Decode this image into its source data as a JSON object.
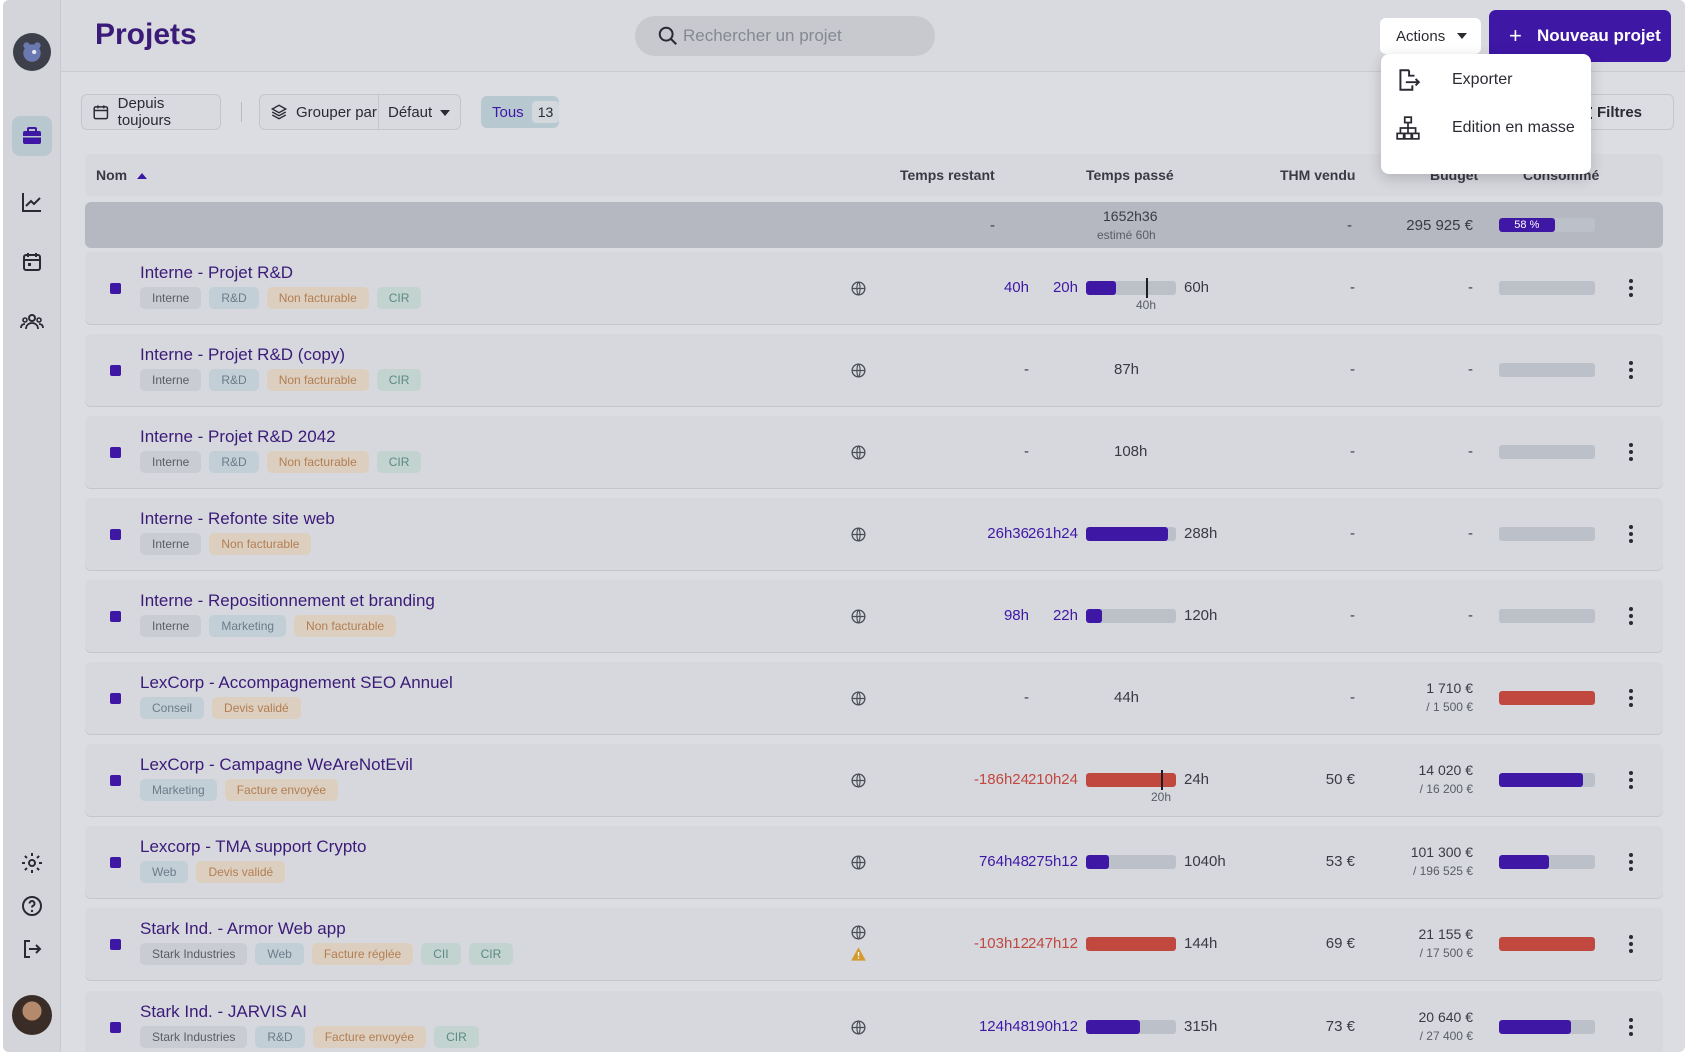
{
  "header": {
    "title": "Projets",
    "search_placeholder": "Rechercher un projet",
    "actions_label": "Actions",
    "new_project_label": "Nouveau projet"
  },
  "actions_menu": {
    "items": [
      {
        "label": "Exporter",
        "icon": "export-icon"
      },
      {
        "label": "Edition en masse",
        "icon": "hierarchy-icon"
      }
    ]
  },
  "toolbar": {
    "period_label": "Depuis toujours",
    "group_label": "Grouper par",
    "group_value": "Défaut",
    "tous_label": "Tous",
    "tous_count": "13",
    "filters_label": "Filtres"
  },
  "table": {
    "columns": {
      "name": "Nom",
      "remaining": "Temps restant",
      "spent": "Temps passé",
      "thm": "THM vendu",
      "budget": "Budget",
      "consumed": "Consommé"
    },
    "totals": {
      "remaining": "-",
      "spent": "1652h36",
      "spent_estimate": "estimé 60h",
      "thm": "-",
      "budget": "295 925 €",
      "consumed_label": "58 %",
      "consumed_fraction": 0.58
    },
    "rows": [
      {
        "name": "Interne - Projet R&D",
        "tags": [
          {
            "t": "Interne",
            "c": "grey"
          },
          {
            "t": "R&D",
            "c": "blue"
          },
          {
            "t": "Non facturable",
            "c": "orange"
          },
          {
            "t": "CIR",
            "c": "green"
          }
        ],
        "remaining": "40h",
        "remaining_color": "purple",
        "spent": "20h",
        "spent_color": "purple",
        "total": "60h",
        "bar": 0.33,
        "bar_color": "purple",
        "marker": 0.67,
        "marker_label": "40h",
        "thm": "-",
        "budget": "-",
        "budget_sub": "",
        "consumed": 0,
        "consumed_color": "purple",
        "warning": false
      },
      {
        "name": "Interne - Projet R&D (copy)",
        "tags": [
          {
            "t": "Interne",
            "c": "grey"
          },
          {
            "t": "R&D",
            "c": "blue"
          },
          {
            "t": "Non facturable",
            "c": "orange"
          },
          {
            "t": "CIR",
            "c": "green"
          }
        ],
        "remaining": "-",
        "remaining_color": "plain",
        "spent": "87h",
        "spent_color": "plain",
        "total": "",
        "bar": null,
        "bar_color": "purple",
        "marker": null,
        "marker_label": "",
        "thm": "-",
        "budget": "-",
        "budget_sub": "",
        "consumed": 0,
        "consumed_color": "purple",
        "warning": false
      },
      {
        "name": "Interne - Projet R&D 2042",
        "tags": [
          {
            "t": "Interne",
            "c": "grey"
          },
          {
            "t": "R&D",
            "c": "blue"
          },
          {
            "t": "Non facturable",
            "c": "orange"
          },
          {
            "t": "CIR",
            "c": "green"
          }
        ],
        "remaining": "-",
        "remaining_color": "plain",
        "spent": "108h",
        "spent_color": "plain",
        "total": "",
        "bar": null,
        "bar_color": "purple",
        "marker": null,
        "marker_label": "",
        "thm": "-",
        "budget": "-",
        "budget_sub": "",
        "consumed": 0,
        "consumed_color": "purple",
        "warning": false
      },
      {
        "name": "Interne - Refonte site web",
        "tags": [
          {
            "t": "Interne",
            "c": "grey"
          },
          {
            "t": "Non facturable",
            "c": "orange"
          }
        ],
        "remaining": "26h36",
        "remaining_color": "purple",
        "spent": "261h24",
        "spent_color": "purple",
        "total": "288h",
        "bar": 0.91,
        "bar_color": "purple",
        "marker": null,
        "marker_label": "",
        "thm": "-",
        "budget": "-",
        "budget_sub": "",
        "consumed": 0,
        "consumed_color": "purple",
        "warning": false
      },
      {
        "name": "Interne - Repositionnement et branding",
        "tags": [
          {
            "t": "Interne",
            "c": "grey"
          },
          {
            "t": "Marketing",
            "c": "blue"
          },
          {
            "t": "Non facturable",
            "c": "orange"
          }
        ],
        "remaining": "98h",
        "remaining_color": "purple",
        "spent": "22h",
        "spent_color": "purple",
        "total": "120h",
        "bar": 0.18,
        "bar_color": "purple",
        "marker": null,
        "marker_label": "",
        "thm": "-",
        "budget": "-",
        "budget_sub": "",
        "consumed": 0,
        "consumed_color": "purple",
        "warning": false
      },
      {
        "name": "LexCorp - Accompagnement SEO Annuel",
        "tags": [
          {
            "t": "Conseil",
            "c": "blue"
          },
          {
            "t": "Devis validé",
            "c": "orange"
          }
        ],
        "remaining": "-",
        "remaining_color": "plain",
        "spent": "44h",
        "spent_color": "plain",
        "total": "",
        "bar": null,
        "bar_color": "purple",
        "marker": null,
        "marker_label": "",
        "thm": "-",
        "budget": "1 710 €",
        "budget_sub": "/ 1 500 €",
        "consumed": 1,
        "consumed_color": "red",
        "warning": false
      },
      {
        "name": "LexCorp - Campagne WeAreNotEvil",
        "tags": [
          {
            "t": "Marketing",
            "c": "blue"
          },
          {
            "t": "Facture envoyée",
            "c": "orange"
          }
        ],
        "remaining": "-186h24",
        "remaining_color": "red",
        "spent": "210h24",
        "spent_color": "red",
        "total": "24h",
        "bar": 1,
        "bar_color": "red",
        "marker": 0.83,
        "marker_label": "20h",
        "thm": "50 €",
        "budget": "14 020 €",
        "budget_sub": "/ 16 200 €",
        "consumed": 0.87,
        "consumed_color": "purple",
        "warning": false
      },
      {
        "name": "Lexcorp - TMA support Crypto",
        "tags": [
          {
            "t": "Web",
            "c": "blue"
          },
          {
            "t": "Devis validé",
            "c": "orange"
          }
        ],
        "remaining": "764h48",
        "remaining_color": "purple",
        "spent": "275h12",
        "spent_color": "purple",
        "total": "1040h",
        "bar": 0.26,
        "bar_color": "purple",
        "marker": null,
        "marker_label": "",
        "thm": "53 €",
        "budget": "101 300 €",
        "budget_sub": "/ 196 525 €",
        "consumed": 0.52,
        "consumed_color": "purple",
        "warning": false
      },
      {
        "name": "Stark Ind. - Armor Web app",
        "tags": [
          {
            "t": "Stark Industries",
            "c": "grey"
          },
          {
            "t": "Web",
            "c": "blue"
          },
          {
            "t": "Facture réglée",
            "c": "orange"
          },
          {
            "t": "CII",
            "c": "green"
          },
          {
            "t": "CIR",
            "c": "green"
          }
        ],
        "remaining": "-103h12",
        "remaining_color": "red",
        "spent": "247h12",
        "spent_color": "red",
        "total": "144h",
        "bar": 1,
        "bar_color": "red",
        "marker": null,
        "marker_label": "",
        "thm": "69 €",
        "budget": "21 155 €",
        "budget_sub": "/ 17 500 €",
        "consumed": 1,
        "consumed_color": "red",
        "warning": true
      },
      {
        "name": "Stark Ind. - JARVIS AI",
        "tags": [
          {
            "t": "Stark Industries",
            "c": "grey"
          },
          {
            "t": "R&D",
            "c": "blue"
          },
          {
            "t": "Facture envoyée",
            "c": "orange"
          },
          {
            "t": "CIR",
            "c": "green"
          }
        ],
        "remaining": "124h48",
        "remaining_color": "purple",
        "spent": "190h12",
        "spent_color": "purple",
        "total": "315h",
        "bar": 0.6,
        "bar_color": "purple",
        "marker": null,
        "marker_label": "",
        "thm": "73 €",
        "budget": "20 640 €",
        "budget_sub": "/ 27 400 €",
        "consumed": 0.75,
        "consumed_color": "purple",
        "warning": false
      }
    ]
  }
}
